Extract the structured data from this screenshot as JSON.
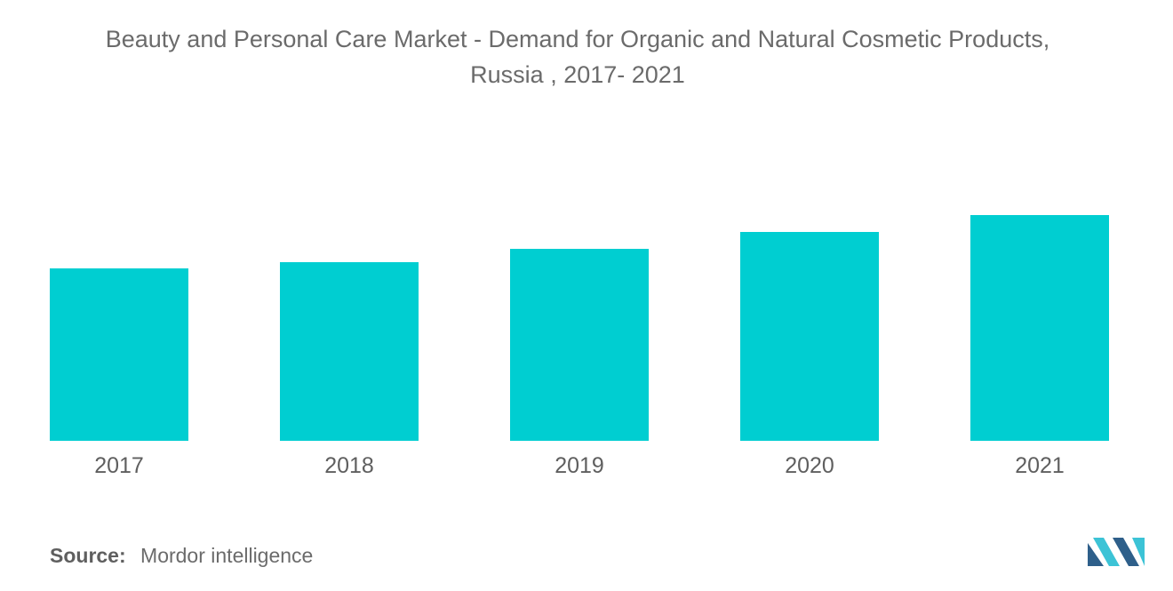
{
  "title_line1": "Beauty and Personal Care Market - Demand for Organic and Natural Cosmetic Products,",
  "title_line2": "Russia , 2017- 2021",
  "source_label": "Source:",
  "source_text": "Mordor intelligence",
  "colors": {
    "bar": "#00CED1",
    "text": "#6b6b6b",
    "logo_dark": "#2e5f8a",
    "logo_light": "#3cc3d6"
  },
  "chart_data": {
    "type": "bar",
    "categories": [
      "2017",
      "2018",
      "2019",
      "2020",
      "2021"
    ],
    "values": [
      194,
      201,
      216,
      235,
      254
    ],
    "title": "Beauty and Personal Care Market - Demand for Organic and Natural Cosmetic Products, Russia , 2017- 2021",
    "xlabel": "",
    "ylabel": "",
    "ylim": [
      0,
      254
    ],
    "grid": false,
    "legend": "none"
  }
}
